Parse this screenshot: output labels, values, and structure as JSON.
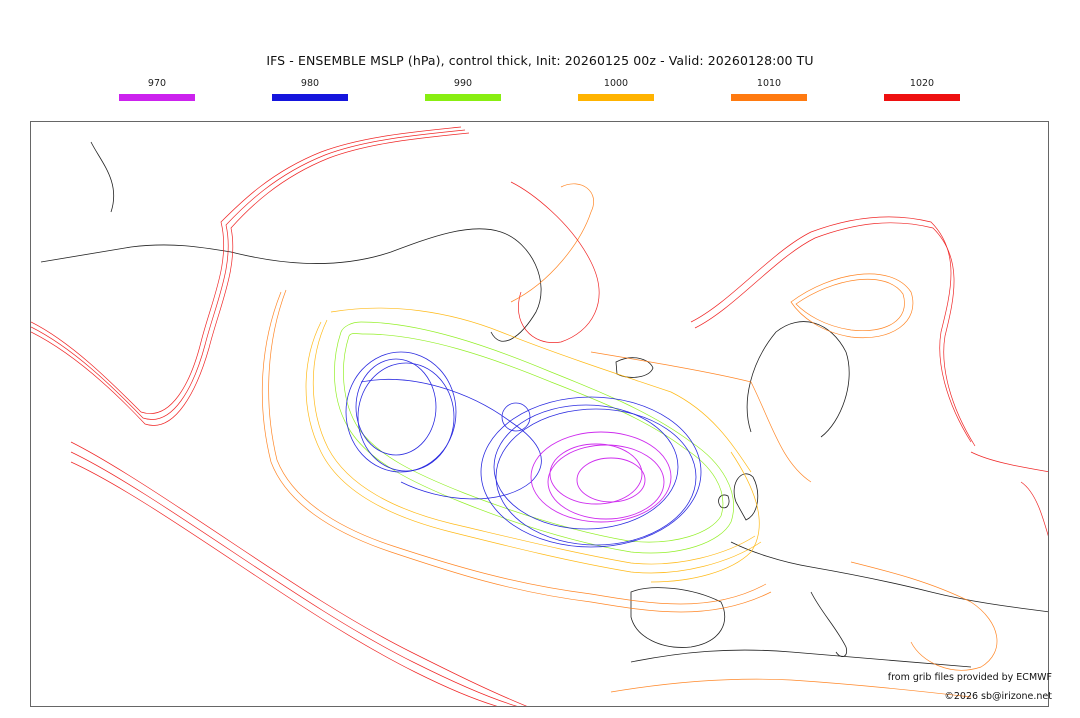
{
  "title": "IFS - ENSEMBLE MSLP (hPa), control thick, Init: 20260125 00z - Valid: 20260128:00 TU",
  "legend": [
    {
      "label": "970",
      "color": "#cc22ee"
    },
    {
      "label": "980",
      "color": "#1515dd"
    },
    {
      "label": "990",
      "color": "#88ee11"
    },
    {
      "label": "1000",
      "color": "#ffb300"
    },
    {
      "label": "1010",
      "color": "#ff7a10"
    },
    {
      "label": "1020",
      "color": "#ee1010"
    }
  ],
  "credits": {
    "source": "from grib files provided by ECMWF",
    "copyright": "©2026 sb@irizone.net"
  }
}
